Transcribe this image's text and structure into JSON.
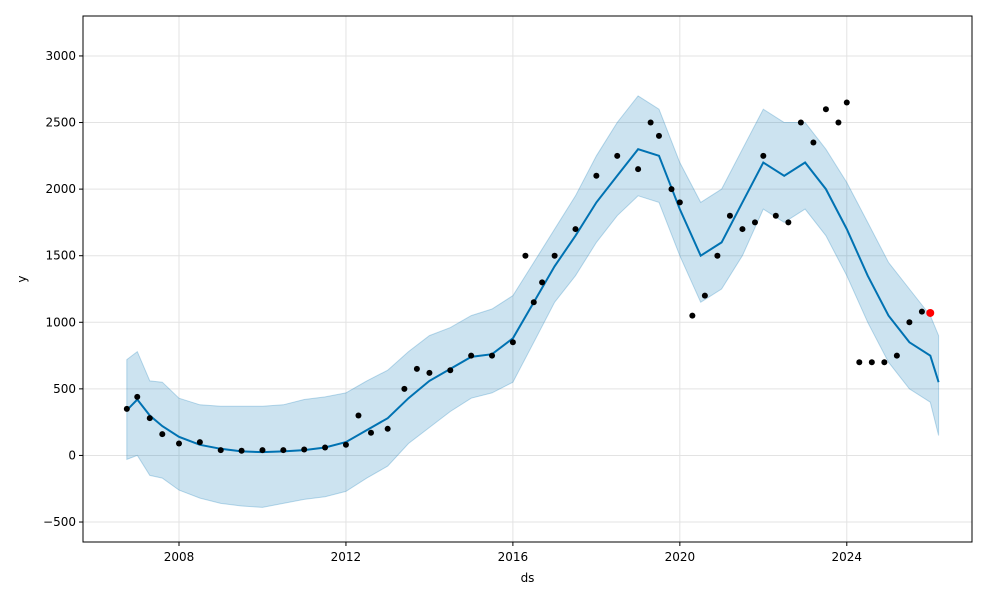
{
  "chart_data": {
    "type": "line",
    "xlabel": "ds",
    "ylabel": "y",
    "xlim": [
      2005.7,
      2027.0
    ],
    "ylim": [
      -650,
      3300
    ],
    "x_ticks": [
      2008,
      2012,
      2016,
      2020,
      2024
    ],
    "x_tick_labels": [
      "2008",
      "2012",
      "2016",
      "2020",
      "2024"
    ],
    "y_ticks": [
      -500,
      0,
      500,
      1000,
      1500,
      2000,
      2500,
      3000
    ],
    "y_tick_labels": [
      "−500",
      "0",
      "500",
      "1000",
      "1500",
      "2000",
      "2500",
      "3000"
    ],
    "grid": true,
    "colors": {
      "forecast": "#0072B2",
      "interval": "#0072B2",
      "observed": "#000000",
      "recent": "#ff0000"
    },
    "series": [
      {
        "kind": "forecast",
        "x": [
          2006.75,
          2007.0,
          2007.3,
          2007.6,
          2008.0,
          2008.5,
          2009.0,
          2009.5,
          2010.0,
          2010.5,
          2011.0,
          2011.5,
          2012.0,
          2012.5,
          2013.0,
          2013.5,
          2014.0,
          2014.5,
          2015.0,
          2015.5,
          2016.0,
          2016.5,
          2017.0,
          2017.5,
          2018.0,
          2018.5,
          2019.0,
          2019.5,
          2020.0,
          2020.5,
          2021.0,
          2021.5,
          2022.0,
          2022.5,
          2023.0,
          2023.5,
          2024.0,
          2024.5,
          2025.0,
          2025.5,
          2026.0,
          2026.2
        ],
        "y": [
          340,
          420,
          300,
          220,
          140,
          80,
          50,
          30,
          25,
          30,
          40,
          60,
          100,
          190,
          280,
          430,
          560,
          650,
          740,
          760,
          880,
          1150,
          1420,
          1650,
          1900,
          2100,
          2300,
          2250,
          1850,
          1500,
          1600,
          1900,
          2200,
          2100,
          2200,
          2000,
          1700,
          1350,
          1050,
          850,
          750,
          550
        ]
      },
      {
        "kind": "interval",
        "x": [
          2006.75,
          2007.0,
          2007.3,
          2007.6,
          2008.0,
          2008.5,
          2009.0,
          2009.5,
          2010.0,
          2010.5,
          2011.0,
          2011.5,
          2012.0,
          2012.5,
          2013.0,
          2013.5,
          2014.0,
          2014.5,
          2015.0,
          2015.5,
          2016.0,
          2016.5,
          2017.0,
          2017.5,
          2018.0,
          2018.5,
          2019.0,
          2019.5,
          2020.0,
          2020.5,
          2021.0,
          2021.5,
          2022.0,
          2022.5,
          2023.0,
          2023.5,
          2024.0,
          2024.5,
          2025.0,
          2025.5,
          2026.0,
          2026.2
        ],
        "upper": [
          720,
          780,
          560,
          550,
          430,
          380,
          370,
          370,
          370,
          380,
          420,
          440,
          470,
          560,
          640,
          780,
          900,
          960,
          1050,
          1100,
          1200,
          1450,
          1700,
          1950,
          2250,
          2500,
          2700,
          2600,
          2200,
          1900,
          2000,
          2300,
          2600,
          2500,
          2500,
          2300,
          2050,
          1750,
          1450,
          1250,
          1050,
          900
        ],
        "lower": [
          -30,
          0,
          -150,
          -170,
          -260,
          -320,
          -360,
          -380,
          -390,
          -360,
          -330,
          -310,
          -270,
          -170,
          -80,
          90,
          210,
          330,
          430,
          470,
          550,
          850,
          1150,
          1350,
          1600,
          1800,
          1950,
          1900,
          1500,
          1150,
          1250,
          1500,
          1850,
          1750,
          1850,
          1650,
          1350,
          1000,
          700,
          500,
          400,
          150
        ]
      },
      {
        "kind": "observed",
        "x": [
          2006.75,
          2007.0,
          2007.3,
          2007.6,
          2008.0,
          2008.5,
          2009.0,
          2009.5,
          2010.0,
          2010.5,
          2011.0,
          2011.5,
          2012.0,
          2012.3,
          2012.6,
          2013.0,
          2013.4,
          2013.7,
          2014.0,
          2014.5,
          2015.0,
          2015.5,
          2016.0,
          2016.3,
          2016.5,
          2016.7,
          2017.0,
          2017.5,
          2018.0,
          2018.5,
          2019.0,
          2019.3,
          2019.5,
          2019.8,
          2020.0,
          2020.3,
          2020.6,
          2020.9,
          2021.2,
          2021.5,
          2021.8,
          2022.0,
          2022.3,
          2022.6,
          2022.9,
          2023.2,
          2023.5,
          2023.8,
          2024.0,
          2024.3,
          2024.6,
          2024.9,
          2025.2,
          2025.5,
          2025.8
        ],
        "y": [
          350,
          440,
          280,
          160,
          90,
          100,
          40,
          35,
          40,
          40,
          45,
          60,
          80,
          300,
          170,
          200,
          500,
          650,
          620,
          640,
          750,
          750,
          850,
          1500,
          1150,
          1300,
          1500,
          1700,
          2100,
          2250,
          2150,
          2500,
          2400,
          2000,
          1900,
          1050,
          1200,
          1500,
          1800,
          1700,
          1750,
          2250,
          1800,
          1750,
          2500,
          2350,
          2600,
          2500,
          2650,
          700,
          700,
          700,
          750,
          1000,
          1080
        ]
      },
      {
        "kind": "recent",
        "x": [
          2026.0
        ],
        "y": [
          1070
        ]
      }
    ]
  }
}
